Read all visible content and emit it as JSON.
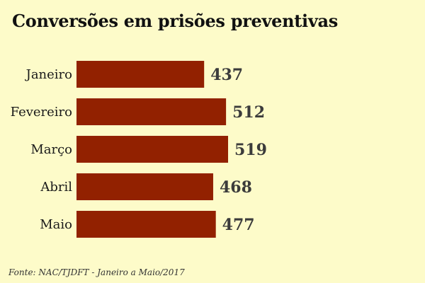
{
  "title": "Conversões em prisões preventivas",
  "source": "Fonte: NAC/TJDFT - Janeiro a Maio/2017",
  "colors": {
    "background": "#fdfbc9",
    "bar": "#922100",
    "value_text": "#3b3b3b"
  },
  "chart_data": {
    "type": "bar",
    "orientation": "horizontal",
    "title": "Conversões em prisões preventivas",
    "categories": [
      "Janeiro",
      "Fevereiro",
      "Março",
      "Abril",
      "Maio"
    ],
    "values": [
      437,
      512,
      519,
      468,
      477
    ],
    "xlim": [
      0,
      519
    ],
    "grid": false,
    "legend": "none"
  }
}
